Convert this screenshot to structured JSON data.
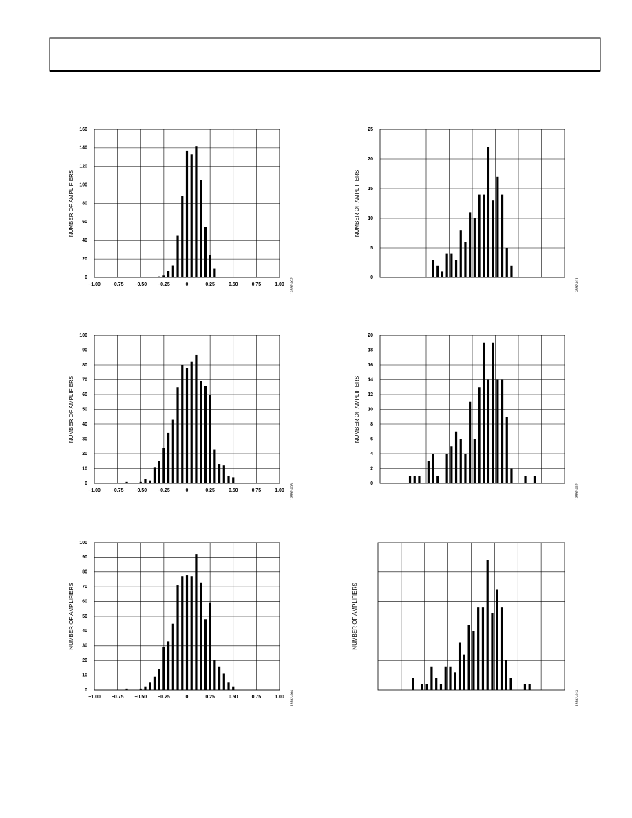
{
  "chart_data": [
    {
      "type": "bar",
      "y_label": "NUMBER OF AMPLIFIERS",
      "figure_id": "13592-002",
      "color": "#000000",
      "grid": true,
      "x": [
        -0.3,
        -0.25,
        -0.2,
        -0.15,
        -0.1,
        -0.05,
        0,
        0.05,
        0.1,
        0.15,
        0.2,
        0.25,
        0.3
      ],
      "values": [
        1,
        2,
        7,
        13,
        45,
        88,
        137,
        133,
        142,
        105,
        55,
        24,
        10
      ],
      "xlim": [
        -1,
        1
      ],
      "xticks": [
        {
          "value": -1,
          "label": "−1.00"
        },
        {
          "value": -0.75,
          "label": "−0.75"
        },
        {
          "value": -0.5,
          "label": "−0.50"
        },
        {
          "value": -0.25,
          "label": "−0.25"
        },
        0,
        0.25,
        {
          "value": 0.5,
          "label": "0.50"
        },
        0.75,
        {
          "value": 1,
          "label": "1.00"
        }
      ],
      "ylim": [
        0,
        160
      ],
      "yticks": [
        0,
        20,
        40,
        60,
        80,
        100,
        120,
        140,
        160
      ]
    },
    {
      "type": "bar",
      "y_label": "NUMBER OF AMPLIFIERS",
      "figure_id": "13592-011",
      "color": "#000000",
      "grid": true,
      "categories": [
        null,
        null,
        null,
        null,
        null,
        null,
        null,
        null,
        null,
        null,
        null,
        null,
        null,
        null,
        null,
        null,
        null,
        null,
        null,
        null,
        null,
        null,
        null,
        null,
        null,
        null,
        null,
        null,
        null,
        null,
        null,
        null,
        null,
        null,
        null,
        null,
        null,
        null,
        null,
        null
      ],
      "values": [
        null,
        null,
        null,
        null,
        null,
        null,
        null,
        null,
        null,
        null,
        null,
        3,
        2,
        1,
        4,
        4,
        3,
        8,
        6,
        11,
        10,
        14,
        14,
        22,
        13,
        17,
        14,
        5,
        2,
        null,
        null,
        null,
        null,
        null,
        null,
        null,
        null,
        null,
        null,
        null
      ],
      "ylim": [
        0,
        25
      ],
      "yticks": [
        0,
        5,
        10,
        15,
        20,
        25
      ]
    },
    {
      "type": "bar",
      "y_label": "NUMBER OF AMPLIFIERS",
      "figure_id": "13592-003",
      "color": "#000000",
      "grid": true,
      "x": [
        -0.65,
        -0.5,
        -0.45,
        -0.4,
        -0.35,
        -0.3,
        -0.25,
        -0.2,
        -0.15,
        -0.1,
        -0.05,
        0,
        0.05,
        0.1,
        0.15,
        0.2,
        0.25,
        0.3,
        0.35,
        0.4,
        0.45,
        0.5
      ],
      "values": [
        1,
        1,
        3,
        2,
        11,
        15,
        24,
        34,
        43,
        65,
        80,
        78,
        82,
        87,
        69,
        66,
        60,
        23,
        13,
        12,
        5,
        4
      ],
      "xlim": [
        -1,
        1
      ],
      "xticks": [
        {
          "value": -1,
          "label": "−1.00"
        },
        {
          "value": -0.75,
          "label": "−0.75"
        },
        {
          "value": -0.5,
          "label": "−0.50"
        },
        {
          "value": -0.25,
          "label": "−0.25"
        },
        0,
        0.25,
        {
          "value": 0.5,
          "label": "0.50"
        },
        0.75,
        {
          "value": 1,
          "label": "1.00"
        }
      ],
      "ylim": [
        0,
        100
      ],
      "yticks": [
        0,
        10,
        20,
        30,
        40,
        50,
        60,
        70,
        80,
        90,
        100
      ]
    },
    {
      "type": "bar",
      "y_label": "NUMBER OF AMPLIFIERS",
      "figure_id": "13592-012",
      "color": "#000000",
      "grid": true,
      "categories": [
        null,
        null,
        null,
        null,
        null,
        null,
        null,
        null,
        null,
        null,
        null,
        null,
        null,
        null,
        null,
        null,
        null,
        null,
        null,
        null,
        null,
        null,
        null,
        null,
        null,
        null,
        null,
        null,
        null,
        null,
        null,
        null,
        null,
        null,
        null,
        null,
        null,
        null,
        null,
        null
      ],
      "values": [
        null,
        null,
        null,
        null,
        null,
        null,
        1,
        1,
        1,
        null,
        3,
        4,
        1,
        null,
        4,
        5,
        7,
        6,
        4,
        11,
        6,
        13,
        19,
        14,
        19,
        14,
        14,
        9,
        2,
        null,
        null,
        1,
        null,
        1,
        null,
        null,
        null,
        null,
        null,
        null
      ],
      "ylim": [
        0,
        20
      ],
      "yticks": [
        0,
        2,
        4,
        6,
        8,
        10,
        12,
        14,
        16,
        18,
        20
      ]
    },
    {
      "type": "bar",
      "y_label": "NUMBER OF AMPLIFIERS",
      "figure_id": "13592-004",
      "color": "#000000",
      "grid": true,
      "x": [
        -0.65,
        -0.5,
        -0.45,
        -0.4,
        -0.35,
        -0.3,
        -0.25,
        -0.2,
        -0.15,
        -0.1,
        -0.05,
        0,
        0.05,
        0.1,
        0.15,
        0.2,
        0.25,
        0.3,
        0.35,
        0.4,
        0.45,
        0.5
      ],
      "values": [
        1,
        1,
        2,
        5,
        9,
        14,
        29,
        33,
        45,
        71,
        77,
        78,
        77,
        92,
        73,
        48,
        59,
        20,
        16,
        11,
        5,
        2
      ],
      "xlim": [
        -1,
        1
      ],
      "xticks": [
        {
          "value": -1,
          "label": "−1.00"
        },
        {
          "value": -0.75,
          "label": "−0.75"
        },
        {
          "value": -0.5,
          "label": "−0.50"
        },
        {
          "value": -0.25,
          "label": "−0.25"
        },
        0,
        0.25,
        {
          "value": 0.5,
          "label": "0.50"
        },
        0.75,
        {
          "value": 1,
          "label": "1.00"
        }
      ],
      "ylim": [
        0,
        100
      ],
      "yticks": [
        0,
        10,
        20,
        30,
        40,
        50,
        60,
        70,
        80,
        90,
        100
      ]
    },
    {
      "type": "bar",
      "y_label": "NUMBER OF AMPLIFIERS",
      "figure_id": "13592-013",
      "color": "#000000",
      "grid": true,
      "categories": [
        null,
        null,
        null,
        null,
        null,
        null,
        null,
        null,
        null,
        null,
        null,
        null,
        null,
        null,
        null,
        null,
        null,
        null,
        null,
        null,
        null,
        null,
        null,
        null,
        null,
        null,
        null,
        null,
        null,
        null,
        null,
        null,
        null,
        null,
        null,
        null,
        null,
        null,
        null,
        null
      ],
      "values": [
        null,
        null,
        null,
        null,
        null,
        null,
        null,
        2,
        null,
        1,
        1,
        4,
        2,
        1,
        4,
        4,
        3,
        8,
        6,
        11,
        10,
        14,
        14,
        22,
        13,
        17,
        14,
        5,
        2,
        null,
        null,
        1,
        1,
        null,
        null,
        null,
        null,
        null,
        null,
        null
      ],
      "ylim": [
        0,
        25
      ]
    }
  ]
}
